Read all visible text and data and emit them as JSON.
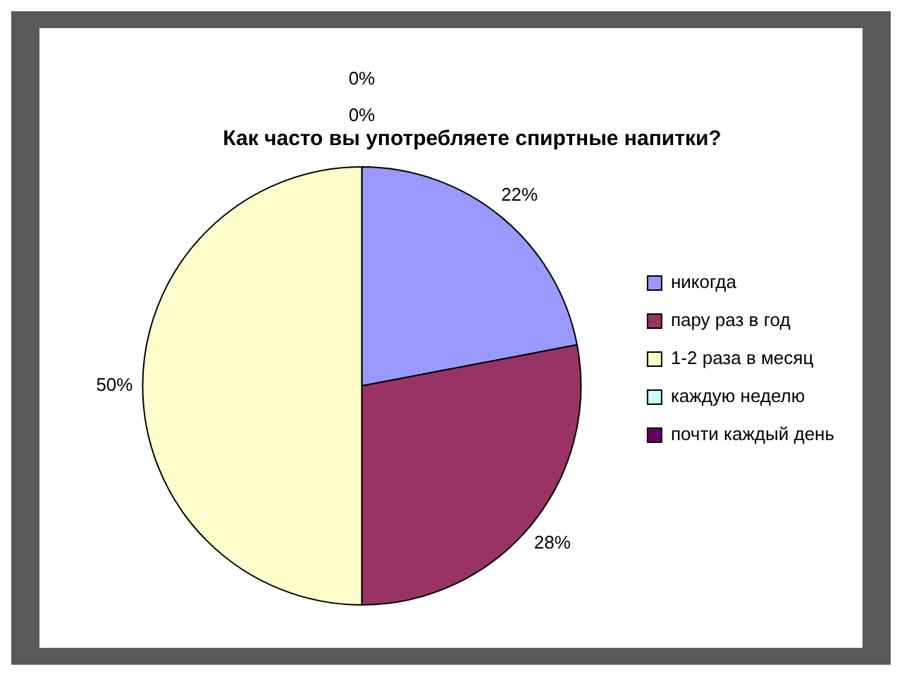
{
  "chart_data": {
    "type": "pie",
    "title": "Как часто вы употребляете спиртные напитки?",
    "categories": [
      "никогда",
      "пару раз в год",
      "1-2 раза в месяц",
      "каждую неделю",
      "почти каждый день"
    ],
    "values": [
      22,
      28,
      50,
      0,
      0
    ],
    "colors": [
      "#9999ff",
      "#993366",
      "#ffffcc",
      "#ccffff",
      "#660066"
    ],
    "value_labels": [
      "22%",
      "28%",
      "50%",
      "0%",
      "0%"
    ],
    "legend": "right"
  }
}
